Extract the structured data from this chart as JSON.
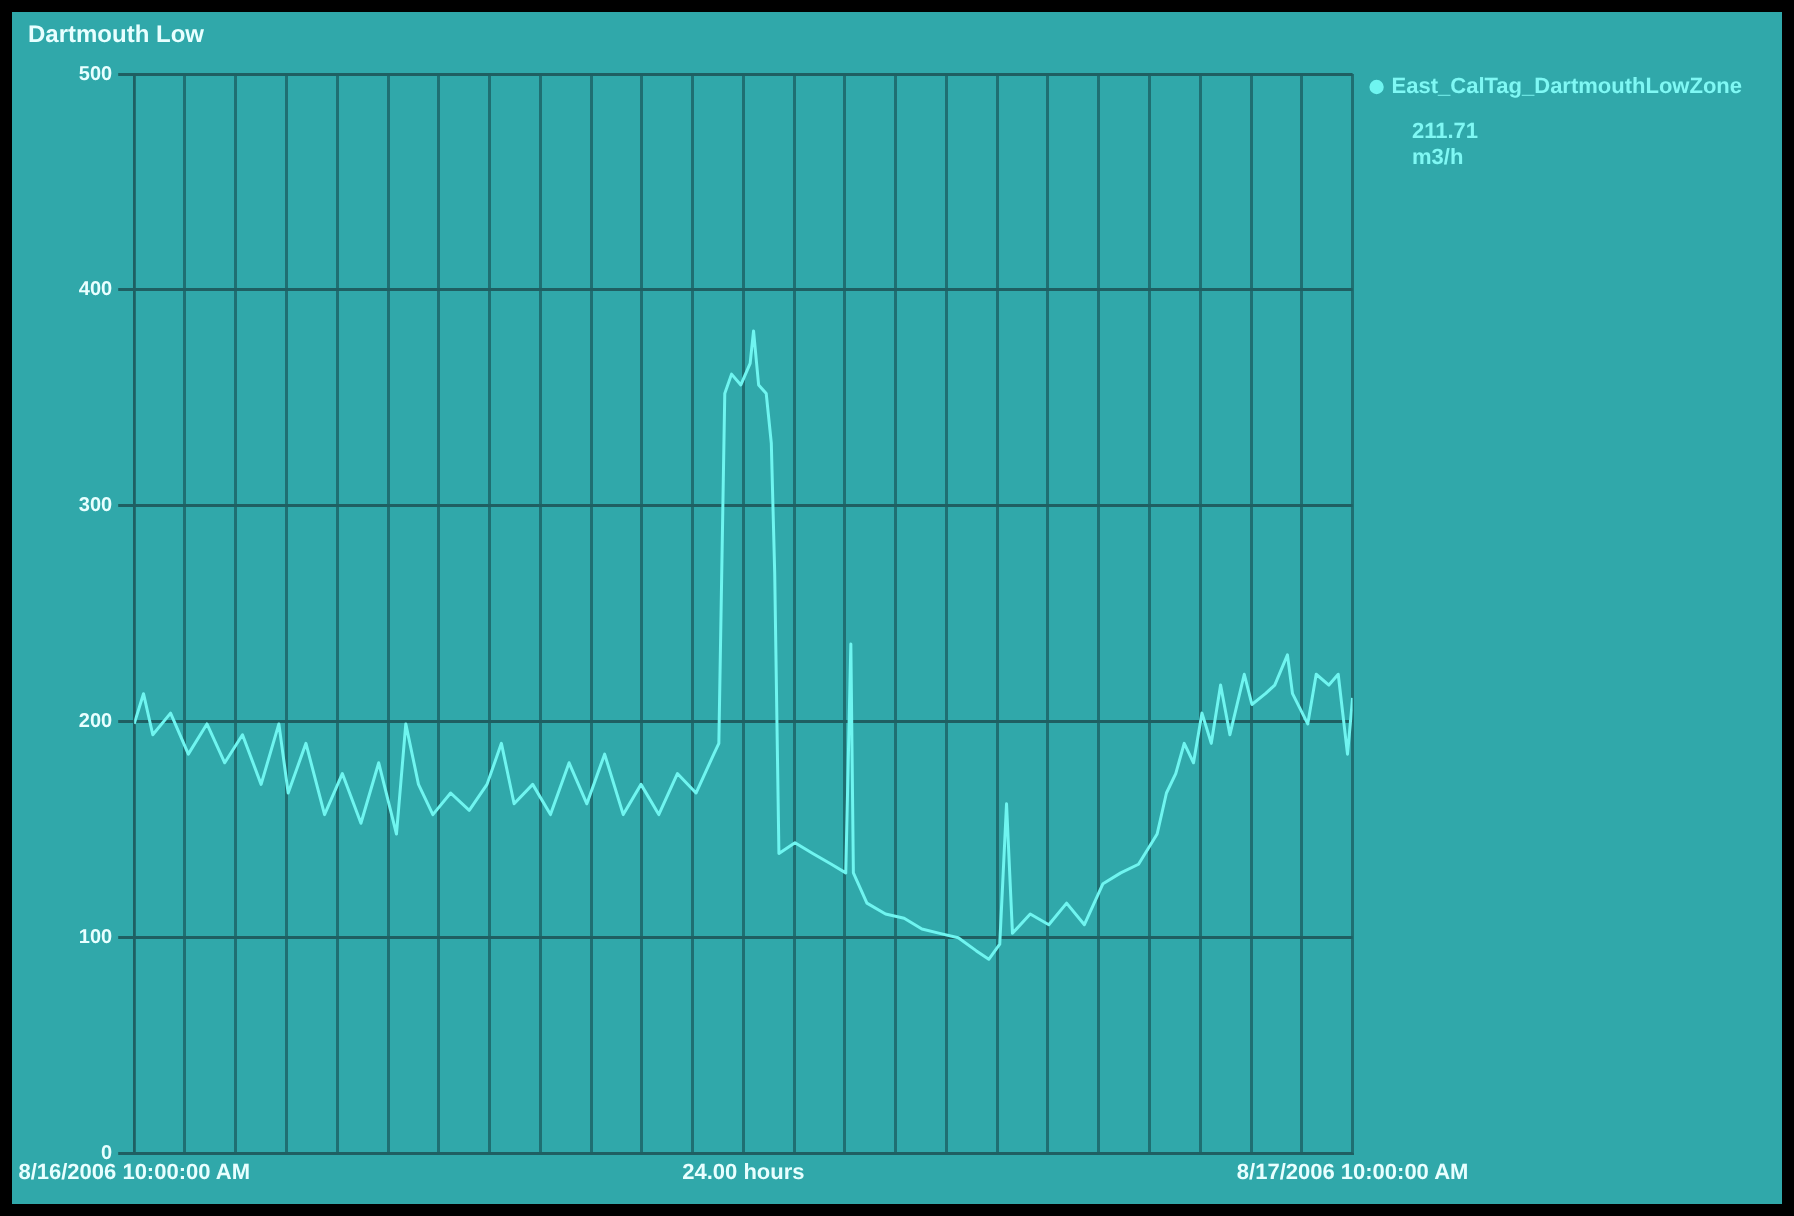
{
  "chart_data": {
    "type": "line",
    "title": "Dartmouth Low",
    "annotations": [
      "211.71",
      "m3/h"
    ],
    "xlim": [
      "2006-08-16T10:00",
      "2006-08-17T10:00"
    ],
    "xticks": [
      {
        "value": "2006-08-16T10:00",
        "label": "8/16/2006 10:00:00 AM"
      },
      {
        "value": "2006-08-16T11:00",
        "label": null
      },
      {
        "value": "2006-08-16T12:00",
        "label": null
      },
      {
        "value": "2006-08-16T13:00",
        "label": null
      },
      {
        "value": "2006-08-16T14:00",
        "label": null
      },
      {
        "value": "2006-08-16T15:00",
        "label": null
      },
      {
        "value": "2006-08-16T16:00",
        "label": null
      },
      {
        "value": "2006-08-16T17:00",
        "label": null
      },
      {
        "value": "2006-08-16T18:00",
        "label": null
      },
      {
        "value": "2006-08-16T19:00",
        "label": null
      },
      {
        "value": "2006-08-16T20:00",
        "label": null
      },
      {
        "value": "2006-08-16T21:00",
        "label": null
      },
      {
        "value": "2006-08-16T22:00",
        "label": "24.00 hours"
      },
      {
        "value": "2006-08-16T23:00",
        "label": null
      },
      {
        "value": "2006-08-17T00:00",
        "label": null
      },
      {
        "value": "2006-08-17T01:00",
        "label": null
      },
      {
        "value": "2006-08-17T02:00",
        "label": null
      },
      {
        "value": "2006-08-17T03:00",
        "label": null
      },
      {
        "value": "2006-08-17T04:00",
        "label": null
      },
      {
        "value": "2006-08-17T05:00",
        "label": null
      },
      {
        "value": "2006-08-17T06:00",
        "label": null
      },
      {
        "value": "2006-08-17T07:00",
        "label": null
      },
      {
        "value": "2006-08-17T08:00",
        "label": null
      },
      {
        "value": "2006-08-17T09:00",
        "label": null
      },
      {
        "value": "2006-08-17T10:00",
        "label": "8/17/2006 10:00:00 AM"
      }
    ],
    "ylim": [
      0,
      500
    ],
    "yticks": [
      0,
      100,
      200,
      300,
      400,
      500
    ],
    "grid": true,
    "legend": "top right",
    "marker": "none",
    "line_style": "solid",
    "series": [
      {
        "name": "East_CalTag_DartmouthLowZone",
        "color": "#6ff5f0",
        "x": [
          "2006-08-16T10:00",
          "2006-08-16T10:11",
          "2006-08-16T10:22",
          "2006-08-16T10:43",
          "2006-08-16T11:04",
          "2006-08-16T11:26",
          "2006-08-16T11:47",
          "2006-08-16T12:08",
          "2006-08-16T12:30",
          "2006-08-16T12:51",
          "2006-08-16T13:02",
          "2006-08-16T13:23",
          "2006-08-16T13:45",
          "2006-08-16T14:06",
          "2006-08-16T14:28",
          "2006-08-16T14:49",
          "2006-08-16T15:10",
          "2006-08-16T15:21",
          "2006-08-16T15:36",
          "2006-08-16T15:53",
          "2006-08-16T16:14",
          "2006-08-16T16:36",
          "2006-08-16T16:57",
          "2006-08-16T17:14",
          "2006-08-16T17:29",
          "2006-08-16T17:51",
          "2006-08-16T18:12",
          "2006-08-16T18:34",
          "2006-08-16T18:55",
          "2006-08-16T19:16",
          "2006-08-16T19:38",
          "2006-08-16T19:59",
          "2006-08-16T20:20",
          "2006-08-16T20:42",
          "2006-08-16T21:04",
          "2006-08-16T21:25",
          "2006-08-16T21:31",
          "2006-08-16T21:38",
          "2006-08-16T21:46",
          "2006-08-16T21:57",
          "2006-08-16T22:08",
          "2006-08-16T22:12",
          "2006-08-16T22:18",
          "2006-08-16T22:27",
          "2006-08-16T22:33",
          "2006-08-16T22:37",
          "2006-08-16T22:42",
          "2006-08-16T23:01",
          "2006-08-16T23:22",
          "2006-08-16T23:44",
          "2006-08-17T00:01",
          "2006-08-17T00:07",
          "2006-08-17T00:10",
          "2006-08-17T00:26",
          "2006-08-17T00:48",
          "2006-08-17T01:10",
          "2006-08-17T01:31",
          "2006-08-17T01:52",
          "2006-08-17T02:14",
          "2006-08-17T02:35",
          "2006-08-17T02:50",
          "2006-08-17T03:03",
          "2006-08-17T03:11",
          "2006-08-17T03:18",
          "2006-08-17T03:39",
          "2006-08-17T04:01",
          "2006-08-17T04:22",
          "2006-08-17T04:43",
          "2006-08-17T05:05",
          "2006-08-17T05:26",
          "2006-08-17T05:47",
          "2006-08-17T06:09",
          "2006-08-17T06:20",
          "2006-08-17T06:31",
          "2006-08-17T06:41",
          "2006-08-17T06:52",
          "2006-08-17T07:02",
          "2006-08-17T07:13",
          "2006-08-17T07:24",
          "2006-08-17T07:35",
          "2006-08-17T07:52",
          "2006-08-17T08:01",
          "2006-08-17T08:17",
          "2006-08-17T08:28",
          "2006-08-17T08:43",
          "2006-08-17T08:49",
          "2006-08-17T09:07",
          "2006-08-17T09:17",
          "2006-08-17T09:32",
          "2006-08-17T09:43",
          "2006-08-17T09:54",
          "2006-08-17T10:00"
        ],
        "values": [
          199,
          213,
          194,
          204,
          185,
          199,
          181,
          194,
          171,
          199,
          167,
          190,
          157,
          176,
          153,
          181,
          148,
          199,
          171,
          157,
          167,
          159,
          171,
          190,
          162,
          171,
          157,
          181,
          162,
          185,
          157,
          171,
          157,
          176,
          167,
          185,
          190,
          352,
          361,
          356,
          366,
          381,
          356,
          352,
          329,
          269,
          139,
          144,
          139,
          134,
          130,
          236,
          130,
          116,
          111,
          109,
          104,
          102,
          100,
          94,
          90,
          97,
          162,
          102,
          111,
          106,
          116,
          106,
          125,
          130,
          134,
          148,
          167,
          176,
          190,
          181,
          204,
          190,
          217,
          194,
          222,
          208,
          213,
          217,
          231,
          213,
          199,
          222,
          217,
          222,
          185,
          211
        ]
      }
    ]
  }
}
